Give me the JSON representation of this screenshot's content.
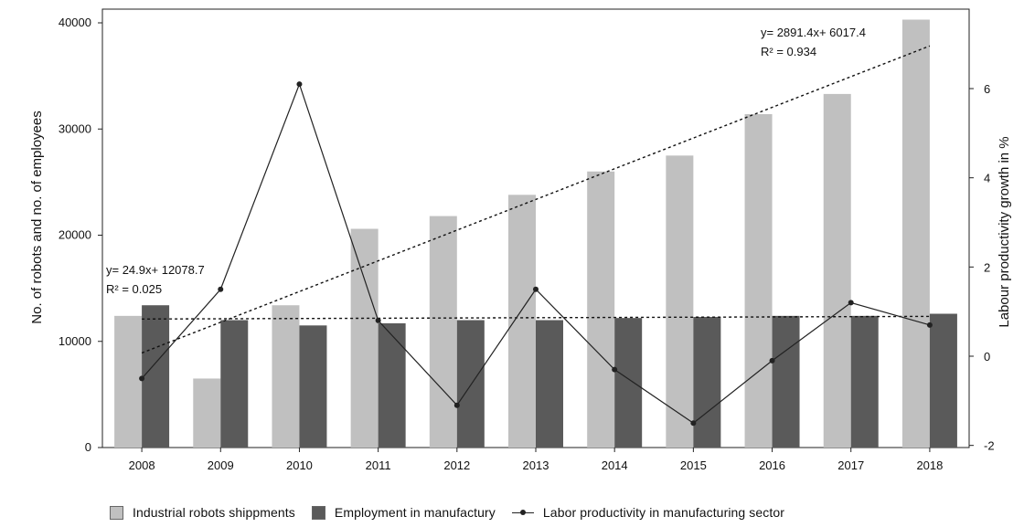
{
  "chart_data": {
    "type": "bar",
    "categories": [
      "2008",
      "2009",
      "2010",
      "2011",
      "2012",
      "2013",
      "2014",
      "2015",
      "2016",
      "2017",
      "2018"
    ],
    "series": [
      {
        "name": "Industrial robots shippments",
        "kind": "bar",
        "axis": "left",
        "color": "#c0c0c0",
        "values": [
          12400,
          6500,
          13400,
          20600,
          21800,
          23800,
          26000,
          27500,
          31400,
          33300,
          40300
        ]
      },
      {
        "name": "Employment in manufactury",
        "kind": "bar",
        "axis": "left",
        "color": "#5a5a5a",
        "values": [
          13400,
          12000,
          11500,
          11700,
          12000,
          12000,
          12200,
          12300,
          12400,
          12400,
          12600
        ]
      },
      {
        "name": "Labor productivity in manufacturing sector",
        "kind": "line",
        "axis": "right",
        "color": "#222222",
        "values": [
          -0.5,
          1.5,
          6.1,
          0.8,
          -1.1,
          1.5,
          -0.3,
          -1.5,
          -0.1,
          1.2,
          0.7
        ]
      }
    ],
    "trendlines": [
      {
        "equation": "y= 2891.4x+ 6017.4",
        "r2": "R² = 0.934",
        "slope": 2891.4,
        "intercept": 6017.4,
        "of_series": "Industrial robots shippments"
      },
      {
        "equation": "y= 24.9x+ 12078.7",
        "r2": "R² = 0.025",
        "slope": 24.9,
        "intercept": 12078.7,
        "of_series": "Employment in manufactury"
      }
    ],
    "ylabel": "No. of robots and no. of employees",
    "y2label": "Labour productivity growth in %",
    "xlabel": "",
    "ylim": [
      0,
      40000
    ],
    "y2lim": [
      -2,
      7
    ],
    "yticks": [
      0,
      10000,
      20000,
      30000,
      40000
    ],
    "y2ticks": [
      -2,
      0,
      2,
      4,
      6
    ],
    "legend_position": "bottom",
    "grid": false
  }
}
